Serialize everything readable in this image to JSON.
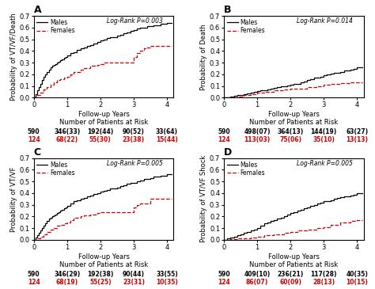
{
  "chart_data": [
    {
      "type": "step",
      "title": "A",
      "x_label": "Follow-up Years\nNumber of Patients at Risk",
      "y_label": "Probability of VT/VF/Death",
      "annotations": [
        {
          "text": "Log-Rank P=0.003"
        }
      ],
      "xlim": [
        0,
        4.2
      ],
      "xticks": [
        0,
        1,
        2,
        3,
        4
      ],
      "ylim": [
        0,
        0.7
      ],
      "yticks": [
        0.0,
        0.1,
        0.2,
        0.3,
        0.4,
        0.5,
        0.6,
        0.7
      ],
      "legend": "upper left",
      "series": [
        {
          "name": "Males",
          "color": "#000000",
          "line_style": "solid",
          "x": [
            0,
            0.05,
            0.1,
            0.15,
            0.2,
            0.25,
            0.3,
            0.35,
            0.4,
            0.45,
            0.5,
            0.55,
            0.6,
            0.65,
            0.7,
            0.75,
            0.8,
            0.85,
            0.9,
            0.95,
            1.0,
            1.1,
            1.2,
            1.3,
            1.4,
            1.5,
            1.6,
            1.7,
            1.8,
            1.9,
            2.0,
            2.1,
            2.2,
            2.3,
            2.4,
            2.5,
            2.6,
            2.7,
            2.8,
            2.9,
            3.0,
            3.1,
            3.2,
            3.3,
            3.4,
            3.5,
            3.6,
            3.7,
            3.8,
            3.9,
            4.0,
            4.15
          ],
          "values": [
            0.0,
            0.03,
            0.06,
            0.09,
            0.12,
            0.15,
            0.18,
            0.2,
            0.22,
            0.24,
            0.26,
            0.27,
            0.28,
            0.29,
            0.3,
            0.31,
            0.32,
            0.33,
            0.34,
            0.35,
            0.36,
            0.38,
            0.39,
            0.41,
            0.42,
            0.43,
            0.44,
            0.45,
            0.46,
            0.48,
            0.49,
            0.5,
            0.51,
            0.52,
            0.52,
            0.53,
            0.54,
            0.55,
            0.56,
            0.57,
            0.58,
            0.59,
            0.6,
            0.6,
            0.61,
            0.61,
            0.62,
            0.62,
            0.63,
            0.63,
            0.64,
            0.64
          ]
        },
        {
          "name": "Females",
          "color": "#cc0000",
          "line_style": "dashed",
          "x": [
            0,
            0.1,
            0.2,
            0.3,
            0.4,
            0.5,
            0.6,
            0.7,
            0.8,
            0.9,
            1.0,
            1.1,
            1.2,
            1.4,
            1.5,
            1.7,
            1.9,
            2.0,
            2.1,
            2.2,
            2.4,
            2.6,
            2.8,
            3.0,
            3.1,
            3.2,
            3.3,
            3.4,
            3.5,
            3.6,
            4.0,
            4.15
          ],
          "values": [
            0.0,
            0.02,
            0.04,
            0.07,
            0.09,
            0.11,
            0.13,
            0.15,
            0.16,
            0.17,
            0.18,
            0.2,
            0.22,
            0.24,
            0.25,
            0.27,
            0.28,
            0.29,
            0.3,
            0.3,
            0.3,
            0.3,
            0.3,
            0.35,
            0.38,
            0.4,
            0.42,
            0.43,
            0.44,
            0.44,
            0.44,
            0.44
          ]
        }
      ],
      "at_risk": [
        {
          "series": "Males",
          "x": [
            0,
            1,
            2,
            3,
            4
          ],
          "labels": [
            "590",
            "346(33)",
            "192(44)",
            "90(52)",
            "33(64)"
          ]
        },
        {
          "series": "Females",
          "x": [
            0,
            1,
            2,
            3,
            4
          ],
          "labels": [
            "124",
            "68(22)",
            "55(30)",
            "23(38)",
            "15(44)"
          ]
        }
      ]
    },
    {
      "type": "step",
      "title": "B",
      "x_label": "Follow-up Years\nNumber of Patients at Risk",
      "y_label": "Probability of Death",
      "annotations": [
        {
          "text": "Log-Rank P=0.014"
        }
      ],
      "xlim": [
        0,
        4.2
      ],
      "xticks": [
        0,
        1,
        2,
        3,
        4
      ],
      "ylim": [
        0,
        0.7
      ],
      "yticks": [
        0.0,
        0.1,
        0.2,
        0.3,
        0.4,
        0.5,
        0.6,
        0.7
      ],
      "legend": "upper left",
      "series": [
        {
          "name": "Males",
          "color": "#000000",
          "line_style": "solid",
          "x": [
            0,
            0.1,
            0.2,
            0.3,
            0.4,
            0.5,
            0.6,
            0.7,
            0.8,
            0.9,
            1.0,
            1.1,
            1.2,
            1.3,
            1.4,
            1.5,
            1.6,
            1.7,
            1.8,
            1.9,
            2.0,
            2.1,
            2.2,
            2.3,
            2.4,
            2.5,
            2.6,
            2.7,
            2.8,
            2.9,
            3.0,
            3.1,
            3.2,
            3.3,
            3.4,
            3.5,
            3.6,
            3.7,
            3.8,
            3.9,
            4.0,
            4.15
          ],
          "values": [
            0.0,
            0.005,
            0.01,
            0.015,
            0.02,
            0.025,
            0.03,
            0.035,
            0.04,
            0.05,
            0.055,
            0.06,
            0.065,
            0.07,
            0.08,
            0.085,
            0.09,
            0.095,
            0.1,
            0.105,
            0.11,
            0.115,
            0.12,
            0.13,
            0.14,
            0.15,
            0.16,
            0.17,
            0.175,
            0.18,
            0.19,
            0.2,
            0.205,
            0.21,
            0.215,
            0.22,
            0.23,
            0.235,
            0.24,
            0.245,
            0.26,
            0.26
          ]
        },
        {
          "name": "Females",
          "color": "#cc0000",
          "line_style": "dashed",
          "x": [
            0,
            0.2,
            0.4,
            0.6,
            0.8,
            1.0,
            1.2,
            1.5,
            1.8,
            2.0,
            2.2,
            2.5,
            2.8,
            3.0,
            3.2,
            3.5,
            3.8,
            4.0,
            4.15
          ],
          "values": [
            0.0,
            0.005,
            0.01,
            0.02,
            0.03,
            0.04,
            0.05,
            0.06,
            0.07,
            0.075,
            0.08,
            0.09,
            0.1,
            0.11,
            0.115,
            0.125,
            0.13,
            0.13,
            0.13
          ]
        }
      ],
      "at_risk": [
        {
          "series": "Males",
          "x": [
            0,
            1,
            2,
            3,
            4
          ],
          "labels": [
            "590",
            "498(07)",
            "364(13)",
            "144(19)",
            "63(27)"
          ]
        },
        {
          "series": "Females",
          "x": [
            0,
            1,
            2,
            3,
            4
          ],
          "labels": [
            "124",
            "113(03)",
            "75(06)",
            "35(10)",
            "13(13)"
          ]
        }
      ]
    },
    {
      "type": "step",
      "title": "C",
      "x_label": "Follow-up Years\nNumber of Patients at Risk",
      "y_label": "Probability of VT/VF",
      "annotations": [
        {
          "text": "Log-Rank P=0.005"
        }
      ],
      "xlim": [
        0,
        4.2
      ],
      "xticks": [
        0,
        1,
        2,
        3,
        4
      ],
      "ylim": [
        0,
        0.7
      ],
      "yticks": [
        0.0,
        0.1,
        0.2,
        0.3,
        0.4,
        0.5,
        0.6,
        0.7
      ],
      "legend": "upper left",
      "series": [
        {
          "name": "Males",
          "color": "#000000",
          "line_style": "solid",
          "x": [
            0,
            0.05,
            0.1,
            0.15,
            0.2,
            0.25,
            0.3,
            0.35,
            0.4,
            0.45,
            0.5,
            0.55,
            0.6,
            0.65,
            0.7,
            0.75,
            0.8,
            0.85,
            0.9,
            0.95,
            1.0,
            1.1,
            1.2,
            1.3,
            1.4,
            1.5,
            1.6,
            1.7,
            1.8,
            1.9,
            2.0,
            2.1,
            2.2,
            2.3,
            2.4,
            2.5,
            2.6,
            2.7,
            2.8,
            2.9,
            3.0,
            3.1,
            3.2,
            3.3,
            3.4,
            3.5,
            3.6,
            3.7,
            3.8,
            3.9,
            4.0,
            4.15
          ],
          "values": [
            0.0,
            0.02,
            0.04,
            0.06,
            0.08,
            0.1,
            0.12,
            0.14,
            0.16,
            0.18,
            0.19,
            0.2,
            0.21,
            0.22,
            0.23,
            0.24,
            0.25,
            0.26,
            0.27,
            0.28,
            0.29,
            0.31,
            0.33,
            0.34,
            0.35,
            0.36,
            0.37,
            0.38,
            0.39,
            0.4,
            0.41,
            0.42,
            0.43,
            0.44,
            0.44,
            0.45,
            0.46,
            0.47,
            0.48,
            0.49,
            0.49,
            0.5,
            0.51,
            0.52,
            0.52,
            0.53,
            0.54,
            0.54,
            0.55,
            0.55,
            0.56,
            0.56
          ]
        },
        {
          "name": "Females",
          "color": "#cc0000",
          "line_style": "dashed",
          "x": [
            0,
            0.1,
            0.2,
            0.3,
            0.4,
            0.5,
            0.6,
            0.7,
            0.8,
            0.9,
            1.0,
            1.1,
            1.2,
            1.4,
            1.5,
            1.7,
            1.9,
            2.0,
            2.2,
            2.4,
            2.6,
            2.8,
            3.0,
            3.1,
            3.2,
            3.5,
            3.8,
            4.0,
            4.15
          ],
          "values": [
            0.0,
            0.01,
            0.03,
            0.05,
            0.07,
            0.09,
            0.1,
            0.12,
            0.13,
            0.14,
            0.15,
            0.17,
            0.19,
            0.2,
            0.21,
            0.22,
            0.23,
            0.24,
            0.24,
            0.24,
            0.24,
            0.24,
            0.28,
            0.3,
            0.31,
            0.35,
            0.35,
            0.35,
            0.35
          ]
        }
      ],
      "at_risk": [
        {
          "series": "Males",
          "x": [
            0,
            1,
            2,
            3,
            4
          ],
          "labels": [
            "590",
            "346(29)",
            "192(38)",
            "90(44)",
            "33(55)"
          ]
        },
        {
          "series": "Females",
          "x": [
            0,
            1,
            2,
            3,
            4
          ],
          "labels": [
            "124",
            "68(19)",
            "55(25)",
            "23(31)",
            "10(35)"
          ]
        }
      ]
    },
    {
      "type": "step",
      "title": "D",
      "x_label": "Follow-up Years\nNumber of Patients at Risk",
      "y_label": "Probability of VT/VF Shock",
      "annotations": [
        {
          "text": "Log-Rank P=0.005"
        }
      ],
      "xlim": [
        0,
        4.2
      ],
      "xticks": [
        0,
        1,
        2,
        3,
        4
      ],
      "ylim": [
        0,
        0.7
      ],
      "yticks": [
        0.0,
        0.1,
        0.2,
        0.3,
        0.4,
        0.5,
        0.6,
        0.7
      ],
      "legend": "upper left",
      "series": [
        {
          "name": "Males",
          "color": "#000000",
          "line_style": "solid",
          "x": [
            0,
            0.1,
            0.2,
            0.3,
            0.4,
            0.5,
            0.6,
            0.7,
            0.8,
            0.9,
            1.0,
            1.1,
            1.2,
            1.3,
            1.4,
            1.5,
            1.6,
            1.7,
            1.8,
            1.9,
            2.0,
            2.1,
            2.2,
            2.3,
            2.4,
            2.5,
            2.6,
            2.7,
            2.8,
            2.9,
            3.0,
            3.1,
            3.2,
            3.3,
            3.4,
            3.5,
            3.6,
            3.7,
            3.8,
            3.9,
            4.0,
            4.15
          ],
          "values": [
            0.0,
            0.01,
            0.02,
            0.03,
            0.04,
            0.05,
            0.06,
            0.07,
            0.08,
            0.09,
            0.1,
            0.12,
            0.14,
            0.15,
            0.16,
            0.17,
            0.18,
            0.19,
            0.2,
            0.22,
            0.23,
            0.24,
            0.25,
            0.26,
            0.27,
            0.28,
            0.29,
            0.3,
            0.31,
            0.32,
            0.33,
            0.335,
            0.34,
            0.35,
            0.36,
            0.365,
            0.37,
            0.375,
            0.38,
            0.385,
            0.4,
            0.4
          ]
        },
        {
          "name": "Females",
          "color": "#cc0000",
          "line_style": "dashed",
          "x": [
            0,
            0.2,
            0.4,
            0.6,
            0.8,
            1.0,
            1.2,
            1.5,
            1.8,
            2.0,
            2.2,
            2.5,
            2.8,
            3.0,
            3.2,
            3.5,
            3.8,
            4.0,
            4.15
          ],
          "values": [
            0.0,
            0.005,
            0.01,
            0.015,
            0.02,
            0.03,
            0.04,
            0.05,
            0.06,
            0.07,
            0.08,
            0.09,
            0.1,
            0.11,
            0.13,
            0.15,
            0.16,
            0.17,
            0.17
          ]
        }
      ],
      "at_risk": [
        {
          "series": "Males",
          "x": [
            0,
            1,
            2,
            3,
            4
          ],
          "labels": [
            "590",
            "409(10)",
            "236(21)",
            "117(28)",
            "40(35)"
          ]
        },
        {
          "series": "Females",
          "x": [
            0,
            1,
            2,
            3,
            4
          ],
          "labels": [
            "124",
            "86(07)",
            "60(09)",
            "28(13)",
            "10(15)"
          ]
        }
      ]
    }
  ]
}
